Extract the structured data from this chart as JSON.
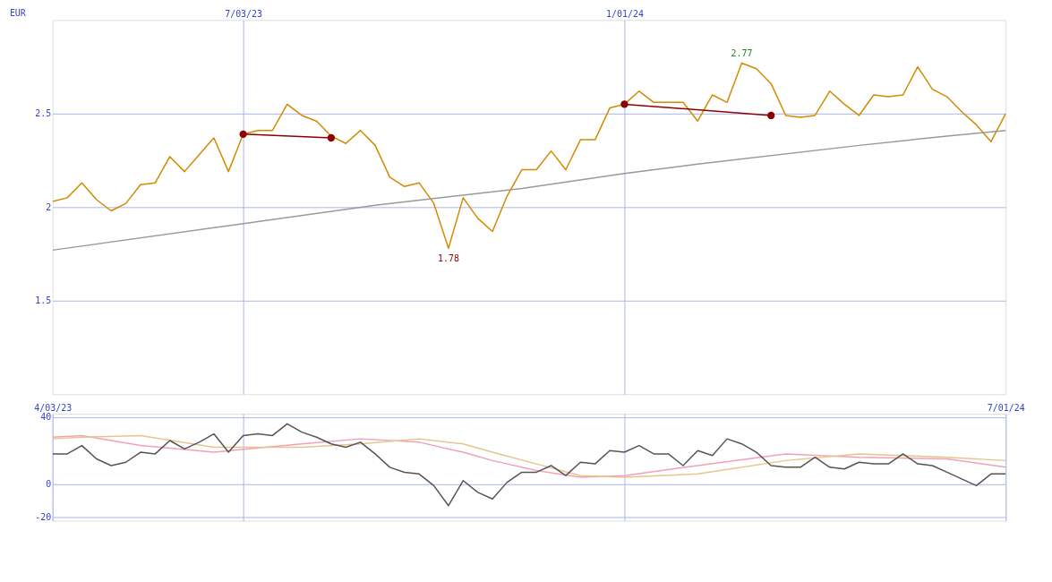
{
  "chart_data": [
    {
      "type": "line",
      "ylabel": "EUR",
      "annotations": [
        {
          "text": "2.77",
          "x": "2024-02-26",
          "y": 2.77
        },
        {
          "text": "1.78",
          "x": "2023-10-09",
          "y": 1.78
        }
      ],
      "x": [
        "2023-04-03",
        "2023-04-10",
        "2023-04-17",
        "2023-04-24",
        "2023-05-01",
        "2023-05-08",
        "2023-05-15",
        "2023-05-22",
        "2023-05-29",
        "2023-06-05",
        "2023-06-12",
        "2023-06-19",
        "2023-06-26",
        "2023-07-03",
        "2023-07-10",
        "2023-07-17",
        "2023-07-24",
        "2023-07-31",
        "2023-08-07",
        "2023-08-14",
        "2023-08-21",
        "2023-08-28",
        "2023-09-04",
        "2023-09-11",
        "2023-09-18",
        "2023-09-25",
        "2023-10-02",
        "2023-10-09",
        "2023-10-16",
        "2023-10-23",
        "2023-10-30",
        "2023-11-06",
        "2023-11-13",
        "2023-11-20",
        "2023-11-27",
        "2023-12-04",
        "2023-12-11",
        "2023-12-18",
        "2023-12-25",
        "2024-01-01",
        "2024-01-08",
        "2024-01-15",
        "2024-01-22",
        "2024-01-29",
        "2024-02-05",
        "2024-02-12",
        "2024-02-19",
        "2024-02-26",
        "2024-03-04",
        "2024-03-11",
        "2024-03-18",
        "2024-03-25",
        "2024-04-01",
        "2024-04-08",
        "2024-04-15",
        "2024-04-22",
        "2024-04-29",
        "2024-05-06",
        "2024-05-13",
        "2024-05-20",
        "2024-05-27",
        "2024-06-03",
        "2024-06-10",
        "2024-06-17",
        "2024-06-24",
        "2024-07-01"
      ],
      "series": [
        {
          "color": "#d48a00",
          "values": [
            2.03,
            2.05,
            2.13,
            2.04,
            1.98,
            2.02,
            2.12,
            2.13,
            2.27,
            2.19,
            2.28,
            2.37,
            2.19,
            2.39,
            2.41,
            2.41,
            2.55,
            2.49,
            2.46,
            2.38,
            2.34,
            2.41,
            2.33,
            2.16,
            2.11,
            2.13,
            2.02,
            1.78,
            2.05,
            1.94,
            1.87,
            2.06,
            2.2,
            2.2,
            2.3,
            2.2,
            2.36,
            2.36,
            2.53,
            2.55,
            2.62,
            2.56,
            2.56,
            2.56,
            2.46,
            2.6,
            2.56,
            2.77,
            2.74,
            2.66,
            2.49,
            2.48,
            2.49,
            2.62,
            2.55,
            2.49,
            2.6,
            2.59,
            2.6,
            2.75,
            2.63,
            2.59,
            2.51,
            2.44,
            2.35,
            2.5
          ]
        },
        {
          "color": "#999999",
          "x": [
            "2023-04-03",
            "2023-06-19",
            "2023-09-04",
            "2023-11-13",
            "2024-01-01",
            "2024-02-05",
            "2024-04-22",
            "2024-06-03",
            "2024-07-01"
          ],
          "values": [
            1.77,
            1.89,
            2.01,
            2.1,
            2.18,
            2.23,
            2.33,
            2.38,
            2.41
          ]
        },
        {
          "color": "#8b0000",
          "marker": "circle",
          "x": [
            "2023-07-03",
            "2023-08-14"
          ],
          "values": [
            2.39,
            2.37
          ]
        },
        {
          "color": "#8b0000",
          "marker": "circle",
          "x": [
            "2024-01-01",
            "2024-03-11"
          ],
          "values": [
            2.55,
            2.49
          ]
        }
      ],
      "xlim": [
        "2023-04-03",
        "2024-07-01"
      ],
      "xticks": [
        {
          "value": "2023-07-03",
          "label": "7/03/23"
        },
        {
          "value": "2024-01-01",
          "label": "1/01/24"
        }
      ],
      "ylim": [
        1.0,
        3.0
      ],
      "yticks": [
        1.5,
        2,
        2.5
      ],
      "grid": true
    },
    {
      "type": "line",
      "x": [
        "2023-04-03",
        "2023-04-10",
        "2023-04-17",
        "2023-04-24",
        "2023-05-01",
        "2023-05-08",
        "2023-05-15",
        "2023-05-22",
        "2023-05-29",
        "2023-06-05",
        "2023-06-12",
        "2023-06-19",
        "2023-06-26",
        "2023-07-03",
        "2023-07-10",
        "2023-07-17",
        "2023-07-24",
        "2023-07-31",
        "2023-08-07",
        "2023-08-14",
        "2023-08-21",
        "2023-08-28",
        "2023-09-04",
        "2023-09-11",
        "2023-09-18",
        "2023-09-25",
        "2023-10-02",
        "2023-10-09",
        "2023-10-16",
        "2023-10-23",
        "2023-10-30",
        "2023-11-06",
        "2023-11-13",
        "2023-11-20",
        "2023-11-27",
        "2023-12-04",
        "2023-12-11",
        "2023-12-18",
        "2023-12-25",
        "2024-01-01",
        "2024-01-08",
        "2024-01-15",
        "2024-01-22",
        "2024-01-29",
        "2024-02-05",
        "2024-02-12",
        "2024-02-19",
        "2024-02-26",
        "2024-03-04",
        "2024-03-11",
        "2024-03-18",
        "2024-03-25",
        "2024-04-01",
        "2024-04-08",
        "2024-04-15",
        "2024-04-22",
        "2024-04-29",
        "2024-05-06",
        "2024-05-13",
        "2024-05-20",
        "2024-05-27",
        "2024-06-03",
        "2024-06-10",
        "2024-06-17",
        "2024-06-24",
        "2024-07-01"
      ],
      "series": [
        {
          "color": "#f4a0b4",
          "x": [
            "2023-04-03",
            "2023-04-17",
            "2023-05-15",
            "2023-06-19",
            "2023-07-31",
            "2023-08-28",
            "2023-09-25",
            "2023-10-16",
            "2023-10-30",
            "2023-11-20",
            "2023-12-11",
            "2024-01-01",
            "2024-02-05",
            "2024-03-18",
            "2024-04-22",
            "2024-06-03",
            "2024-07-01"
          ],
          "values": [
            28,
            29,
            23,
            19,
            24,
            27,
            25,
            19,
            14,
            8,
            4,
            5,
            11,
            18,
            16,
            15,
            10
          ]
        },
        {
          "color": "#e6c48e",
          "x": [
            "2023-04-03",
            "2023-04-17",
            "2023-05-15",
            "2023-06-19",
            "2023-07-31",
            "2023-08-28",
            "2023-09-25",
            "2023-10-16",
            "2023-10-30",
            "2023-11-20",
            "2023-12-11",
            "2024-01-01",
            "2024-02-05",
            "2024-03-18",
            "2024-04-22",
            "2024-06-03",
            "2024-07-01"
          ],
          "values": [
            27,
            28,
            29,
            22,
            22,
            24,
            27,
            24,
            19,
            12,
            5,
            4,
            6,
            14,
            18,
            16,
            14
          ]
        },
        {
          "color": "#555555",
          "values": [
            18,
            18,
            23,
            15,
            11,
            13,
            19,
            18,
            26,
            21,
            25,
            30,
            19,
            29,
            30,
            29,
            36,
            31,
            28,
            24,
            22,
            25,
            18,
            10,
            7,
            6,
            -1,
            -13,
            2,
            -5,
            -9,
            1,
            7,
            7,
            11,
            5,
            13,
            12,
            20,
            19,
            23,
            18,
            18,
            11,
            20,
            17,
            27,
            24,
            19,
            11,
            10,
            10,
            16,
            10,
            9,
            13,
            12,
            12,
            18,
            12,
            11,
            7,
            3,
            -1,
            6,
            6
          ]
        }
      ],
      "xlim": [
        "2023-04-03",
        "2024-07-01"
      ],
      "xticks": [
        {
          "value": "2023-04-03",
          "label": "4/03/23"
        },
        {
          "value": "2023-07-03",
          "label": null
        },
        {
          "value": "2024-01-01",
          "label": null
        },
        {
          "value": "2024-07-01",
          "label": "7/01/24"
        }
      ],
      "ylim": [
        -22,
        42
      ],
      "yticks": [
        -20,
        0,
        40
      ],
      "grid": true
    }
  ]
}
